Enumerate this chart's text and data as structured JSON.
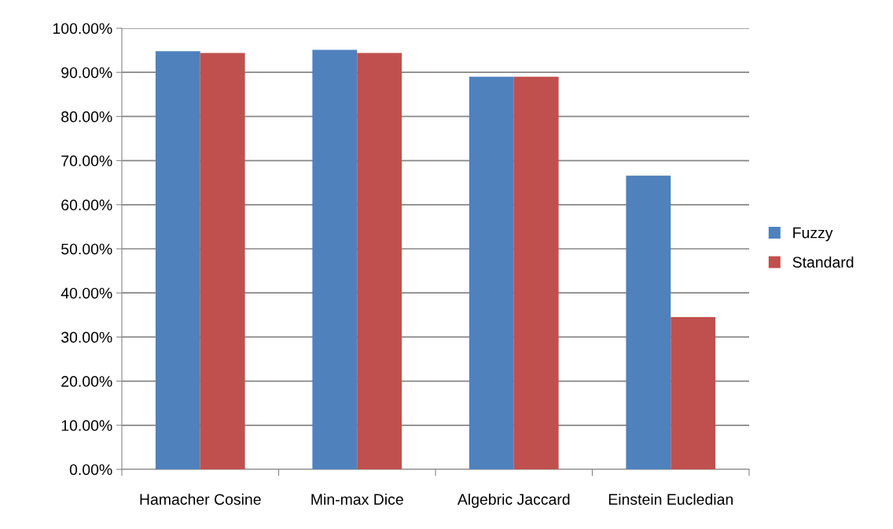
{
  "chart_data": {
    "type": "bar",
    "categories": [
      "Hamacher Cosine",
      "Min-max Dice",
      "Algebric Jaccard",
      "Einstein Eucledian"
    ],
    "series": [
      {
        "name": "Fuzzy",
        "color": "#4f81bd",
        "values": [
          94.8,
          95.1,
          89.0,
          66.6
        ]
      },
      {
        "name": "Standard",
        "color": "#c0504d",
        "values": [
          94.4,
          94.4,
          89.0,
          34.5
        ]
      }
    ],
    "ylim": [
      0,
      100
    ],
    "yticks": [
      {
        "value": 0,
        "label": "0.00%"
      },
      {
        "value": 10,
        "label": "10.00%"
      },
      {
        "value": 20,
        "label": "20.00%"
      },
      {
        "value": 30,
        "label": "30.00%"
      },
      {
        "value": 40,
        "label": "40.00%"
      },
      {
        "value": 50,
        "label": "50.00%"
      },
      {
        "value": 60,
        "label": "60.00%"
      },
      {
        "value": 70,
        "label": "70.00%"
      },
      {
        "value": 80,
        "label": "80.00%"
      },
      {
        "value": 90,
        "label": "90.00%"
      },
      {
        "value": 100,
        "label": "100.00%"
      }
    ],
    "grid": "y",
    "legend": "right"
  }
}
